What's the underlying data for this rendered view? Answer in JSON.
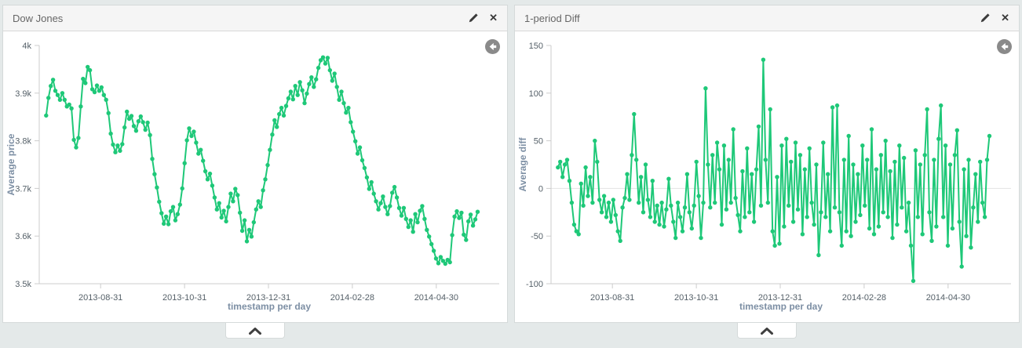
{
  "panels": [
    {
      "title": "Dow Jones"
    },
    {
      "title": "1-period Diff"
    }
  ],
  "icons": {
    "edit": "pencil-icon",
    "close": "close-icon",
    "close_glyph": "✕",
    "back": "circle-back-arrow-icon",
    "collapse": "chevron-up-icon"
  },
  "colors": {
    "line_green": "#1ec878",
    "page_background": "#e4e9e9",
    "header_background": "#f5f5f5",
    "axis_gray": "#cccccc",
    "tick_text": "#556068",
    "axis_title_text": "#7d8fa4"
  },
  "chart_data": [
    {
      "type": "line",
      "title": "Dow Jones",
      "xlabel": "timestamp per day",
      "ylabel": "Average price",
      "legend": "none",
      "grid": "zero-line-only",
      "line_color": "#1ec878",
      "zero_line": false,
      "ylim": [
        3500,
        4000
      ],
      "y_ticks": [
        {
          "label": "4k",
          "value": 4000
        },
        {
          "label": "3.9k",
          "value": 3900
        },
        {
          "label": "3.8k",
          "value": 3800
        },
        {
          "label": "3.7k",
          "value": 3700
        },
        {
          "label": "3.6k",
          "value": 3600
        },
        {
          "label": "3.5k",
          "value": 3500
        }
      ],
      "x_ticks": [
        {
          "label": "2013-08-31",
          "pos": 0.1334
        },
        {
          "label": "2013-10-31",
          "pos": 0.3159
        },
        {
          "label": "2013-12-31",
          "pos": 0.4983
        },
        {
          "label": "2014-02-28",
          "pos": 0.6807
        },
        {
          "label": "2014-04-30",
          "pos": 0.8632
        }
      ],
      "x_range": [
        0.015,
        0.953
      ],
      "values": [
        3853,
        3890,
        3915,
        3928,
        3905,
        3896,
        3886,
        3900,
        3886,
        3872,
        3876,
        3868,
        3802,
        3786,
        3806,
        3872,
        3930,
        3921,
        3955,
        3948,
        3908,
        3902,
        3916,
        3905,
        3912,
        3896,
        3886,
        3858,
        3815,
        3792,
        3776,
        3790,
        3779,
        3793,
        3828,
        3861,
        3846,
        3852,
        3831,
        3821,
        3841,
        3851,
        3839,
        3823,
        3838,
        3812,
        3762,
        3730,
        3702,
        3672,
        3648,
        3626,
        3641,
        3625,
        3652,
        3661,
        3633,
        3646,
        3666,
        3700,
        3753,
        3801,
        3826,
        3810,
        3819,
        3796,
        3773,
        3781,
        3758,
        3736,
        3719,
        3731,
        3706,
        3681,
        3656,
        3669,
        3639,
        3653,
        3631,
        3661,
        3689,
        3673,
        3699,
        3686,
        3649,
        3611,
        3633,
        3589,
        3613,
        3599,
        3629,
        3656,
        3673,
        3661,
        3696,
        3719,
        3749,
        3781,
        3813,
        3843,
        3829,
        3856,
        3869,
        3853,
        3873,
        3889,
        3903,
        3887,
        3915,
        3896,
        3923,
        3906,
        3879,
        3899,
        3919,
        3933,
        3913,
        3929,
        3953,
        3969,
        3975,
        3962,
        3974,
        3948,
        3926,
        3941,
        3913,
        3886,
        3903,
        3879,
        3859,
        3869,
        3839,
        3819,
        3799,
        3773,
        3786,
        3759,
        3743,
        3723,
        3699,
        3713,
        3689,
        3673,
        3656,
        3669,
        3683,
        3661,
        3646,
        3663,
        3691,
        3703,
        3681,
        3659,
        3643,
        3659,
        3636,
        3619,
        3633,
        3609,
        3646,
        3629,
        3653,
        3663,
        3636,
        3613,
        3599,
        3583,
        3569,
        3553,
        3543,
        3556,
        3548,
        3542,
        3550,
        3545,
        3602,
        3641,
        3652,
        3638,
        3649,
        3603,
        3592,
        3631,
        3645,
        3622,
        3635,
        3651
      ]
    },
    {
      "type": "line",
      "title": "1-period Diff",
      "xlabel": "timestamp per day",
      "ylabel": "Average diff",
      "legend": "none",
      "grid": "zero-line-only",
      "line_color": "#1ec878",
      "zero_line": true,
      "ylim": [
        -100,
        150
      ],
      "y_ticks": [
        {
          "label": "150",
          "value": 150
        },
        {
          "label": "100",
          "value": 100
        },
        {
          "label": "50",
          "value": 50
        },
        {
          "label": "0",
          "value": 0
        },
        {
          "label": "-50",
          "value": -50
        },
        {
          "label": "-100",
          "value": -100
        }
      ],
      "x_ticks": [
        {
          "label": "2013-08-31",
          "pos": 0.1334
        },
        {
          "label": "2013-10-31",
          "pos": 0.3159
        },
        {
          "label": "2013-12-31",
          "pos": 0.4983
        },
        {
          "label": "2014-02-28",
          "pos": 0.6807
        },
        {
          "label": "2014-04-30",
          "pos": 0.8632
        }
      ],
      "x_range": [
        0.015,
        0.953
      ],
      "values": [
        22,
        28,
        12,
        25,
        30,
        8,
        -15,
        -38,
        -45,
        -48,
        5,
        -18,
        22,
        -8,
        12,
        -15,
        50,
        28,
        -12,
        -25,
        -8,
        -30,
        -15,
        -35,
        -12,
        -28,
        -45,
        -55,
        -20,
        -10,
        15,
        -12,
        35,
        78,
        30,
        -15,
        12,
        -25,
        25,
        -12,
        -30,
        8,
        -35,
        -18,
        -38,
        -15,
        -40,
        -22,
        10,
        -18,
        -35,
        -52,
        -15,
        -30,
        -45,
        -20,
        15,
        -25,
        -42,
        -18,
        28,
        -8,
        -52,
        -15,
        105,
        25,
        -20,
        35,
        -15,
        48,
        20,
        -38,
        45,
        -22,
        30,
        -15,
        62,
        -10,
        -28,
        -45,
        18,
        -30,
        42,
        -25,
        15,
        -35,
        20,
        65,
        -18,
        135,
        30,
        -15,
        83,
        -45,
        -60,
        12,
        -58,
        45,
        -40,
        52,
        -18,
        28,
        -35,
        48,
        -22,
        35,
        -48,
        20,
        -30,
        42,
        -15,
        -38,
        25,
        -70,
        -25,
        48,
        -30,
        15,
        -45,
        85,
        -20,
        87,
        -25,
        -60,
        30,
        -45,
        55,
        -50,
        25,
        -35,
        15,
        -28,
        45,
        -18,
        30,
        -42,
        62,
        -48,
        20,
        -40,
        35,
        -25,
        50,
        -30,
        18,
        -52,
        28,
        -38,
        45,
        -20,
        32,
        -45,
        -15,
        -60,
        -97,
        40,
        -30,
        25,
        -48,
        35,
        83,
        -25,
        -55,
        30,
        -40,
        52,
        87,
        -30,
        45,
        -60,
        25,
        -42,
        35,
        61,
        -35,
        -82,
        20,
        -50,
        30,
        -62,
        -20,
        15,
        -35,
        28,
        -15,
        -30,
        30,
        55
      ]
    }
  ]
}
